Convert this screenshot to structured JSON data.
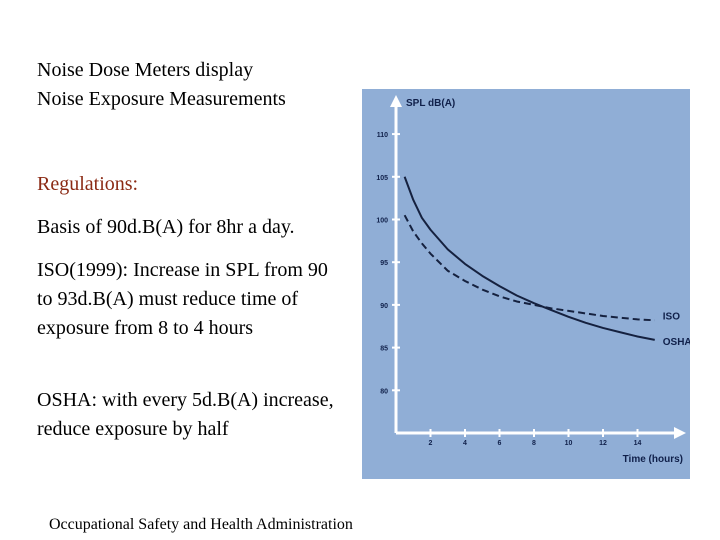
{
  "text": {
    "heading_line1": "Noise Dose Meters display",
    "heading_line2": "Noise Exposure Measurements",
    "regulations_title": "Regulations:",
    "basis": "Basis of 90d.B(A) for 8hr a day.",
    "iso_rule": "ISO(1999): Increase in SPL from 90 to 93d.B(A) must reduce time of exposure from 8 to 4 hours",
    "osha_rule": "OSHA: with every 5d.B(A) increase, reduce exposure by half",
    "footer": "Occupational Safety and Health Administration"
  },
  "chart_data": {
    "type": "line",
    "title": "",
    "ylabel": "SPL dB(A)",
    "xlabel": "Time (hours)",
    "x_ticks": [
      2,
      4,
      6,
      8,
      10,
      12,
      14
    ],
    "y_ticks": [
      80,
      85,
      90,
      95,
      100,
      105,
      110
    ],
    "xlim": [
      0,
      16
    ],
    "ylim": [
      75,
      112
    ],
    "grid": false,
    "colors": {
      "background": "#90aed6",
      "line": "#15213f",
      "axis": "#ffffff"
    },
    "series": [
      {
        "name": "OSHA",
        "style": "solid",
        "x": [
          0.5,
          1,
          1.5,
          2,
          3,
          4,
          5,
          6,
          7,
          8,
          9,
          10,
          11,
          12,
          13,
          14,
          15
        ],
        "y": [
          105,
          102.3,
          100.2,
          98.8,
          96.5,
          94.8,
          93.4,
          92.2,
          91.1,
          90.2,
          89.4,
          88.6,
          87.9,
          87.3,
          86.8,
          86.3,
          85.9
        ]
      },
      {
        "name": "ISO",
        "style": "dashed",
        "x": [
          0.5,
          1,
          1.5,
          2,
          3,
          4,
          5,
          6,
          7,
          8,
          9,
          10,
          11,
          12,
          13,
          14,
          15
        ],
        "y": [
          100.5,
          98.6,
          97.2,
          96.0,
          94.0,
          92.8,
          91.8,
          91.0,
          90.4,
          90.0,
          89.6,
          89.3,
          89.0,
          88.7,
          88.5,
          88.3,
          88.2
        ]
      }
    ]
  }
}
